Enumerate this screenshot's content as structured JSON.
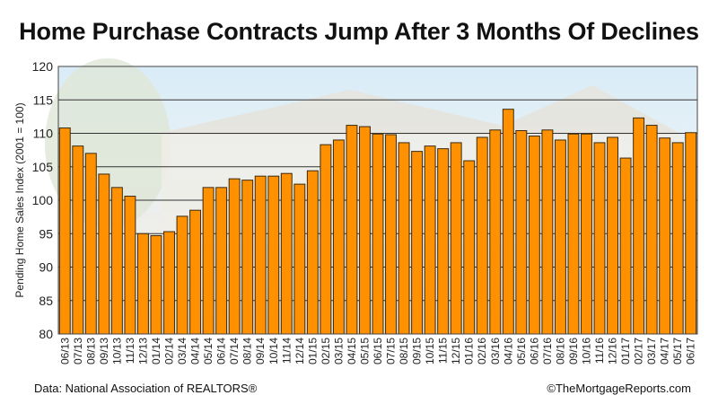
{
  "chart_data": {
    "type": "bar",
    "title": "Home Purchase Contracts Jump After 3 Months Of Declines",
    "xlabel": "",
    "ylabel": "Pending Home Sales Index (2001 = 100)",
    "ylim": [
      80,
      120
    ],
    "yticks": [
      80,
      85,
      90,
      95,
      100,
      105,
      110,
      115,
      120
    ],
    "grid": true,
    "bar_color": "#FF9000",
    "categories": [
      "06/13",
      "07/13",
      "08/13",
      "09/13",
      "10/13",
      "11/13",
      "12/13",
      "01/14",
      "02/14",
      "03/14",
      "04/14",
      "05/14",
      "06/14",
      "07/14",
      "08/14",
      "09/14",
      "10/14",
      "11/14",
      "12/14",
      "01/15",
      "02/15",
      "03/15",
      "04/15",
      "05/15",
      "06/15",
      "07/15",
      "08/15",
      "09/15",
      "10/15",
      "11/15",
      "12/15",
      "01/16",
      "02/16",
      "03/16",
      "04/16",
      "05/16",
      "06/16",
      "07/16",
      "08/16",
      "09/16",
      "10/16",
      "11/16",
      "12/16",
      "01/17",
      "02/17",
      "03/17",
      "04/17",
      "05/17",
      "06/17"
    ],
    "values": [
      110.8,
      108.1,
      107.0,
      103.9,
      101.9,
      100.6,
      95.0,
      94.7,
      95.3,
      97.6,
      98.5,
      101.9,
      101.9,
      103.2,
      103.0,
      103.6,
      103.6,
      104.0,
      102.4,
      104.4,
      108.3,
      109.0,
      111.2,
      111.0,
      109.9,
      109.8,
      108.6,
      107.3,
      108.1,
      107.7,
      108.6,
      105.9,
      109.4,
      110.5,
      113.6,
      110.4,
      109.6,
      110.5,
      109.0,
      109.9,
      109.9,
      108.6,
      109.4,
      106.3,
      112.3,
      111.2,
      109.3,
      108.6,
      110.1
    ]
  },
  "footer": {
    "source": "Data: National Association of REALTORS®",
    "credit": "©TheMortgageReports.com"
  }
}
